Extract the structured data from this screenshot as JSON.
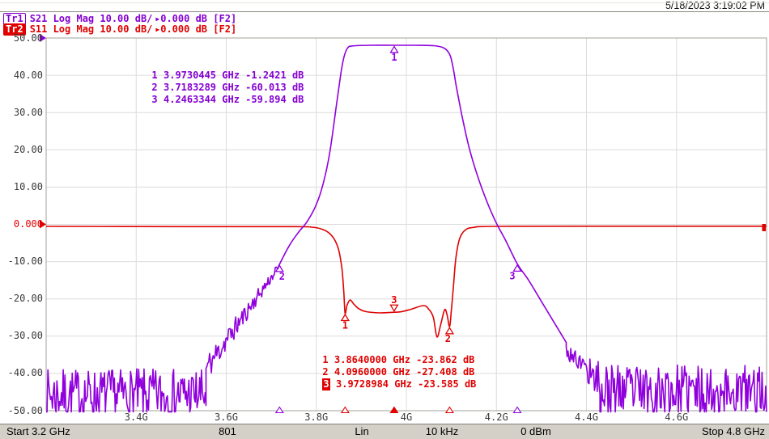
{
  "timestamp": "5/18/2023 3:19:02 PM",
  "colors": {
    "purple": "#9000dd",
    "purple_text": "#8400d2",
    "red": "#e00000",
    "grid": "#dcdcdc",
    "grid_border": "#a0a09a"
  },
  "traces_header": [
    {
      "id": "Tr1",
      "label": "S21 Log Mag 10.00 dB/",
      "ref": "0.000 dB",
      "format": "[F2]"
    },
    {
      "id": "Tr2",
      "label": "S11 Log Mag 10.00 dB/",
      "ref": "0.000 dB",
      "format": "[F2]"
    }
  ],
  "y_axis": {
    "labels": [
      "50.00",
      "40.00",
      "30.00",
      "20.00",
      "10.00",
      "0.000",
      "-10.00",
      "-20.00",
      "-30.00",
      "-40.00",
      "-50.00"
    ],
    "accent_index": 5
  },
  "x_axis": {
    "labels": [
      {
        "f": 3.4,
        "text": "3.4G"
      },
      {
        "f": 3.6,
        "text": "3.6G"
      },
      {
        "f": 3.8,
        "text": "3.8G"
      },
      {
        "f": 4.0,
        "text": "4G"
      },
      {
        "f": 4.2,
        "text": "4.2G"
      },
      {
        "f": 4.4,
        "text": "4.4G"
      },
      {
        "f": 4.6,
        "text": "4.6G"
      }
    ]
  },
  "marker_readouts": {
    "s21": {
      "rows": [
        {
          "n": "1",
          "text": "3.9730445 GHz -1.2421 dB",
          "active": false
        },
        {
          "n": "2",
          "text": "3.7183289 GHz -60.013 dB",
          "active": false
        },
        {
          "n": "3",
          "text": "4.2463344 GHz -59.894 dB",
          "active": false
        }
      ]
    },
    "s11": {
      "rows": [
        {
          "n": "1",
          "text": "3.8640000 GHz -23.862 dB",
          "active": false
        },
        {
          "n": "2",
          "text": "4.0960000 GHz -27.408 dB",
          "active": false
        },
        {
          "n": "3",
          "text": "3.9728984 GHz -23.585 dB",
          "active": true
        }
      ]
    }
  },
  "status_bar": {
    "start": "Start 3.2 GHz",
    "points": "801",
    "sweep_type": "Lin",
    "if_bw": "10 kHz",
    "power": "0 dBm",
    "stop": "Stop 4.8 GHz"
  },
  "chart_data": {
    "type": "line",
    "title": "Bandpass filter response: S21 and S11, Log Mag 10 dB/div",
    "x_unit": "GHz",
    "y_unit": "dB",
    "x_range": [
      3.2,
      4.8
    ],
    "y_displayed_range": [
      -50,
      50
    ],
    "db_per_div": 10,
    "grid": true,
    "series": [
      {
        "name": "S21",
        "color": "#9000dd",
        "display_offset_db": 49.3,
        "segments": [
          {
            "noise": true,
            "f0": 3.2,
            "f1": 3.555,
            "base0": -95,
            "base1": -95,
            "amp0": 7,
            "amp1": 7,
            "seed": 7
          },
          {
            "noise": true,
            "f0": 3.555,
            "f1": 3.715,
            "base0": -88,
            "base1": -61,
            "amp0": 4,
            "amp1": 1.2,
            "seed": 11
          },
          {
            "pts": [
              [
                3.715,
                -61
              ],
              [
                3.7183,
                -60.013
              ],
              [
                3.74,
                -55
              ],
              [
                3.76,
                -51.5
              ],
              [
                3.78,
                -48.5
              ],
              [
                3.8,
                -44
              ],
              [
                3.815,
                -38.5
              ],
              [
                3.83,
                -30
              ],
              [
                3.845,
                -17
              ],
              [
                3.855,
                -8.5
              ],
              [
                3.862,
                -4.2
              ],
              [
                3.87,
                -1.9
              ],
              [
                3.882,
                -1.4
              ],
              [
                3.92,
                -1.26
              ],
              [
                3.973,
                -1.2421
              ],
              [
                4.02,
                -1.26
              ],
              [
                4.06,
                -1.35
              ],
              [
                4.08,
                -1.8
              ],
              [
                4.09,
                -2.6
              ],
              [
                4.098,
                -4.2
              ],
              [
                4.105,
                -8
              ],
              [
                4.112,
                -13
              ],
              [
                4.125,
                -21
              ],
              [
                4.14,
                -29
              ],
              [
                4.16,
                -37
              ],
              [
                4.18,
                -43.5
              ],
              [
                4.2,
                -49
              ],
              [
                4.22,
                -53.5
              ],
              [
                4.2463,
                -59.894
              ],
              [
                4.27,
                -64
              ],
              [
                4.3,
                -70
              ],
              [
                4.33,
                -76
              ],
              [
                4.355,
                -81
              ]
            ]
          },
          {
            "noise": true,
            "f0": 4.355,
            "f1": 4.43,
            "base0": -83,
            "base1": -91,
            "amp0": 2.5,
            "amp1": 5,
            "seed": 17
          },
          {
            "noise": true,
            "f0": 4.43,
            "f1": 4.8,
            "base0": -94,
            "base1": -94,
            "amp0": 7,
            "amp1": 7,
            "seed": 23
          }
        ]
      },
      {
        "name": "S11",
        "color": "#e00000",
        "display_offset_db": 0,
        "segments": [
          {
            "pts": [
              [
                3.2,
                -0.55
              ],
              [
                3.5,
                -0.6
              ],
              [
                3.75,
                -0.6
              ],
              [
                3.79,
                -0.75
              ],
              [
                3.81,
                -1.2
              ],
              [
                3.827,
                -2.2
              ],
              [
                3.84,
                -4
              ],
              [
                3.85,
                -7
              ],
              [
                3.857,
                -12
              ],
              [
                3.861,
                -18
              ],
              [
                3.864,
                -23.862
              ],
              [
                3.868,
                -21.8
              ],
              [
                3.875,
                -20.3
              ],
              [
                3.884,
                -21.5
              ],
              [
                3.895,
                -22.7
              ],
              [
                3.91,
                -23.4
              ],
              [
                3.94,
                -23.75
              ],
              [
                3.9729,
                -23.585
              ],
              [
                3.99,
                -23.4
              ],
              [
                4.01,
                -22.8
              ],
              [
                4.038,
                -21.8
              ],
              [
                4.05,
                -22.8
              ],
              [
                4.06,
                -25
              ],
              [
                4.068,
                -30.2
              ],
              [
                4.076,
                -27
              ],
              [
                4.085,
                -22.9
              ],
              [
                4.0905,
                -24.3
              ],
              [
                4.096,
                -27.408
              ],
              [
                4.1,
                -23
              ],
              [
                4.105,
                -16
              ],
              [
                4.11,
                -9
              ],
              [
                4.118,
                -4
              ],
              [
                4.13,
                -1.6
              ],
              [
                4.15,
                -0.8
              ],
              [
                4.2,
                -0.55
              ],
              [
                4.5,
                -0.5
              ],
              [
                4.8,
                -0.5
              ]
            ]
          }
        ]
      }
    ],
    "markers": [
      {
        "trace": 0,
        "f": 3.9730445,
        "v": -1.2421,
        "label": "1",
        "side": "below",
        "dx": 0
      },
      {
        "trace": 0,
        "f": 3.7183289,
        "v": -60.013,
        "label": "2",
        "side": "below",
        "dx": 3
      },
      {
        "trace": 0,
        "f": 4.2463344,
        "v": -59.894,
        "label": "3",
        "side": "below",
        "dx": -6
      },
      {
        "trace": 1,
        "f": 3.864,
        "v": -23.862,
        "label": "1",
        "side": "below",
        "dx": 0
      },
      {
        "trace": 1,
        "f": 4.096,
        "v": -27.408,
        "label": "2",
        "side": "below",
        "dx": -2
      },
      {
        "trace": 1,
        "f": 3.9728984,
        "v": -23.585,
        "label": "3",
        "side": "above",
        "dx": 0
      }
    ],
    "axis_markers": [
      {
        "f": 3.7183289,
        "trace": 0,
        "filled": false
      },
      {
        "f": 3.864,
        "trace": 1,
        "filled": false
      },
      {
        "f": 3.9728984,
        "trace": 1,
        "filled": true
      },
      {
        "f": 4.096,
        "trace": 1,
        "filled": false
      },
      {
        "f": 4.2463344,
        "trace": 0,
        "filled": false
      }
    ],
    "reference_arrows": [
      {
        "trace": 0,
        "y_displayed": 50
      },
      {
        "trace": 1,
        "y_displayed": 0
      }
    ]
  }
}
